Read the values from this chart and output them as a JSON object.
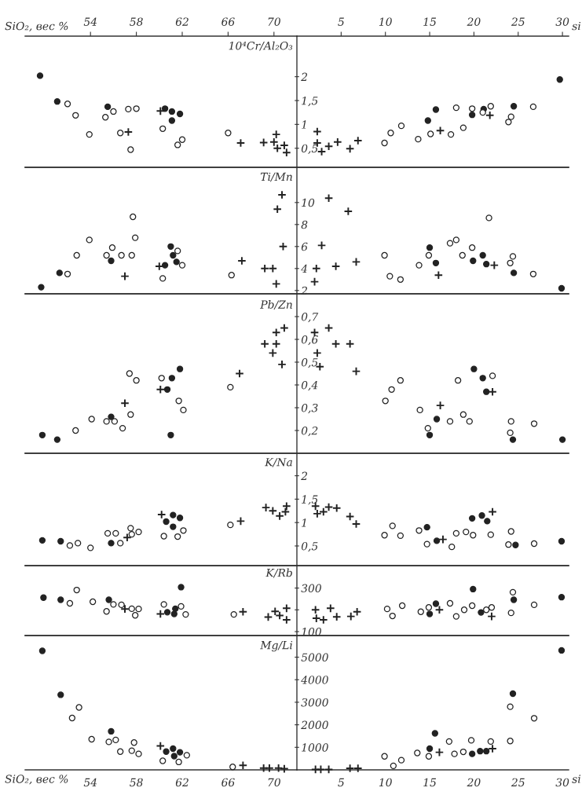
{
  "chart_data": [
    {
      "type": "scatter",
      "xlim": [
        48.3,
        72.0
      ],
      "xticks": [
        54,
        58,
        62,
        66,
        70
      ],
      "xlabel": "SiO₂, вес %",
      "ylim": [
        0.1,
        2.85
      ],
      "tick_labels": "x",
      "series": [
        {
          "color": "#222222",
          "marker": "circle",
          "x": [
            49.6,
            51.1,
            55.5,
            60.5,
            61.1,
            61.8,
            61.1
          ],
          "values": [
            2.02,
            1.48,
            1.37,
            1.33,
            1.27,
            1.22,
            1.08
          ]
        },
        {
          "color": "#ffffff",
          "marker": "circle",
          "x": [
            52.0,
            52.7,
            53.9,
            55.3,
            56.0,
            57.3,
            58.0,
            56.6,
            57.5,
            60.3,
            61.6,
            62.0,
            66.0
          ],
          "values": [
            1.43,
            1.19,
            0.79,
            1.15,
            1.27,
            1.32,
            1.33,
            0.82,
            0.47,
            0.91,
            0.57,
            0.68,
            0.82
          ]
        },
        {
          "color": "#222222",
          "marker": "cross",
          "x": [
            60.1,
            57.3,
            67.1,
            69.1,
            70.0,
            70.2,
            70.3,
            70.9,
            71.1
          ],
          "values": [
            1.28,
            0.84,
            0.61,
            0.62,
            0.63,
            0.79,
            0.5,
            0.56,
            0.41
          ]
        }
      ]
    },
    {
      "type": "scatter",
      "xlim": [
        0,
        30.7
      ],
      "xticks": [
        5,
        10,
        15,
        20,
        25,
        30
      ],
      "xlabel": "si",
      "ylim": [
        0.1,
        2.85
      ],
      "yticks": [
        {
          "value": 0.5,
          "label": "0,5"
        },
        1,
        {
          "value": 1.5,
          "label": "1,5"
        },
        2
      ],
      "ylabel": "10⁴Cr/Al₂O₃",
      "series": [
        {
          "color": "#222222",
          "marker": "circle",
          "x": [
            14.8,
            15.7,
            19.8,
            21.1,
            24.5,
            29.7
          ],
          "values": [
            1.08,
            1.31,
            1.2,
            1.32,
            1.38,
            1.94
          ]
        },
        {
          "color": "#ffffff",
          "marker": "circle",
          "x": [
            9.9,
            10.6,
            11.8,
            13.7,
            15.1,
            17.4,
            18.0,
            18.8,
            19.8,
            21.0,
            21.9,
            23.9,
            24.2,
            26.7
          ],
          "values": [
            0.61,
            0.82,
            0.97,
            0.69,
            0.8,
            0.79,
            1.35,
            0.93,
            1.33,
            1.25,
            1.38,
            1.05,
            1.16,
            1.37
          ]
        },
        {
          "color": "#222222",
          "marker": "cross",
          "x": [
            2.3,
            2.3,
            2.8,
            3.6,
            4.6,
            6.0,
            6.9,
            16.2,
            21.8
          ],
          "values": [
            0.85,
            0.61,
            0.43,
            0.54,
            0.63,
            0.49,
            0.66,
            0.87,
            1.19
          ]
        }
      ]
    },
    {
      "type": "scatter",
      "xlim": [
        48.3,
        72.0
      ],
      "ylim": [
        1.7,
        13.2
      ],
      "tick_labels": false,
      "series": [
        {
          "color": "#222222",
          "marker": "circle",
          "x": [
            51.3,
            55.8,
            61.0,
            61.2,
            60.5,
            61.5,
            49.7
          ],
          "values": [
            3.6,
            4.7,
            6.0,
            5.2,
            4.3,
            4.6,
            2.3
          ]
        },
        {
          "color": "#ffffff",
          "marker": "circle",
          "x": [
            52.0,
            52.8,
            53.9,
            55.4,
            55.9,
            56.7,
            57.6,
            57.7,
            57.9,
            61.6,
            62.0,
            60.3,
            66.3
          ],
          "values": [
            3.5,
            5.2,
            6.6,
            5.2,
            5.9,
            5.2,
            5.2,
            8.7,
            6.8,
            5.6,
            4.3,
            3.1,
            3.4
          ]
        },
        {
          "color": "#222222",
          "marker": "cross",
          "x": [
            57.0,
            60.0,
            67.2,
            69.2,
            69.9,
            70.7,
            70.3,
            70.8,
            70.2
          ],
          "values": [
            3.3,
            4.2,
            4.7,
            4.0,
            4.0,
            10.7,
            9.4,
            6.0,
            2.6
          ]
        }
      ]
    },
    {
      "type": "scatter",
      "xlim": [
        0,
        30.7
      ],
      "ylim": [
        1.7,
        13.2
      ],
      "yticks": [
        2,
        4,
        6,
        8,
        10
      ],
      "ylabel": "Ti/Mn",
      "tick_labels": "y",
      "series": [
        {
          "color": "#222222",
          "marker": "circle",
          "x": [
            15.0,
            15.7,
            19.9,
            21.0,
            21.4,
            24.5,
            29.9
          ],
          "values": [
            5.9,
            4.5,
            4.7,
            5.2,
            4.4,
            3.6,
            2.2
          ]
        },
        {
          "color": "#ffffff",
          "marker": "circle",
          "x": [
            9.9,
            10.5,
            11.7,
            13.8,
            14.9,
            17.3,
            18.0,
            18.7,
            19.8,
            21.7,
            24.1,
            24.4,
            26.7
          ],
          "values": [
            5.2,
            3.3,
            3.0,
            4.3,
            5.2,
            6.3,
            6.6,
            5.2,
            5.9,
            8.6,
            4.5,
            5.1,
            3.5
          ]
        },
        {
          "color": "#222222",
          "marker": "cross",
          "x": [
            3.6,
            5.8,
            2.8,
            2.2,
            4.4,
            6.7,
            16.0,
            22.3,
            2.0
          ],
          "values": [
            10.4,
            9.2,
            6.1,
            4.0,
            4.2,
            4.6,
            3.4,
            4.3,
            2.8
          ]
        }
      ]
    },
    {
      "type": "scatter",
      "xlim": [
        48.3,
        72.0
      ],
      "ylim": [
        0.1,
        0.8
      ],
      "tick_labels": false,
      "series": [
        {
          "color": "#222222",
          "marker": "circle",
          "x": [
            49.8,
            51.1,
            55.8,
            61.1,
            61.8,
            60.7,
            61.0
          ],
          "values": [
            0.18,
            0.16,
            0.26,
            0.43,
            0.47,
            0.38,
            0.18
          ]
        },
        {
          "color": "#ffffff",
          "marker": "circle",
          "x": [
            52.7,
            54.1,
            55.4,
            56.1,
            56.8,
            57.5,
            57.4,
            58.0,
            60.2,
            61.7,
            62.1,
            66.2
          ],
          "values": [
            0.2,
            0.25,
            0.24,
            0.24,
            0.21,
            0.27,
            0.45,
            0.42,
            0.43,
            0.33,
            0.29,
            0.39
          ]
        },
        {
          "color": "#222222",
          "marker": "cross",
          "x": [
            57.0,
            60.1,
            67.0,
            69.2,
            70.2,
            70.2,
            70.9,
            69.9,
            70.7
          ],
          "values": [
            0.32,
            0.38,
            0.45,
            0.58,
            0.58,
            0.63,
            0.65,
            0.54,
            0.49
          ]
        }
      ]
    },
    {
      "type": "scatter",
      "xlim": [
        0,
        30.7
      ],
      "ylim": [
        0.1,
        0.8
      ],
      "yticks": [
        {
          "value": 0.2,
          "label": "0,2"
        },
        {
          "value": 0.3,
          "label": "0,3"
        },
        {
          "value": 0.4,
          "label": "0,4"
        },
        {
          "value": 0.5,
          "label": "0,5"
        },
        {
          "value": 0.6,
          "label": "0,6"
        },
        {
          "value": 0.7,
          "label": "0,7"
        }
      ],
      "ylabel": "Pb/Zn",
      "tick_labels": "y",
      "series": [
        {
          "color": "#222222",
          "marker": "circle",
          "x": [
            15.0,
            15.8,
            20.0,
            21.0,
            21.4,
            24.4,
            30.0
          ],
          "values": [
            0.18,
            0.25,
            0.47,
            0.43,
            0.37,
            0.16,
            0.16
          ]
        },
        {
          "color": "#ffffff",
          "marker": "circle",
          "x": [
            10.0,
            10.7,
            11.7,
            13.9,
            14.8,
            17.3,
            18.2,
            18.8,
            19.5,
            22.1,
            24.2,
            24.1,
            26.8
          ],
          "values": [
            0.33,
            0.38,
            0.42,
            0.29,
            0.21,
            0.24,
            0.42,
            0.27,
            0.24,
            0.44,
            0.24,
            0.19,
            0.23
          ]
        },
        {
          "color": "#222222",
          "marker": "cross",
          "x": [
            2.0,
            3.6,
            2.3,
            2.6,
            4.4,
            6.0,
            6.7,
            16.2,
            22.1
          ],
          "values": [
            0.63,
            0.65,
            0.54,
            0.48,
            0.58,
            0.58,
            0.46,
            0.31,
            0.37
          ]
        }
      ]
    },
    {
      "type": "scatter",
      "xlim": [
        48.3,
        72.0
      ],
      "ylim": [
        0.08,
        2.48
      ],
      "tick_labels": false,
      "series": [
        {
          "color": "#222222",
          "marker": "circle",
          "x": [
            49.8,
            51.4,
            55.8,
            60.6,
            61.2,
            61.8,
            61.2
          ],
          "values": [
            0.62,
            0.6,
            0.56,
            1.02,
            1.16,
            1.1,
            0.91
          ]
        },
        {
          "color": "#ffffff",
          "marker": "circle",
          "x": [
            52.2,
            52.9,
            54.0,
            55.5,
            56.2,
            56.6,
            57.5,
            57.6,
            58.2,
            60.4,
            61.6,
            62.1,
            66.2
          ],
          "values": [
            0.51,
            0.56,
            0.46,
            0.77,
            0.77,
            0.56,
            0.88,
            0.75,
            0.8,
            0.71,
            0.7,
            0.83,
            0.95
          ]
        },
        {
          "color": "#222222",
          "marker": "cross",
          "x": [
            57.2,
            60.2,
            67.1,
            69.3,
            69.9,
            70.5,
            71.1,
            71.0
          ],
          "values": [
            0.68,
            1.17,
            1.03,
            1.32,
            1.25,
            1.14,
            1.35,
            1.23
          ]
        }
      ]
    },
    {
      "type": "scatter",
      "xlim": [
        0,
        30.7
      ],
      "ylim": [
        0.08,
        2.48
      ],
      "yticks": [
        {
          "value": 0.5,
          "label": "0,5"
        },
        1,
        {
          "value": 1.5,
          "label": "1,5"
        },
        2
      ],
      "ylabel": "K/Na",
      "tick_labels": "y",
      "series": [
        {
          "color": "#222222",
          "marker": "circle",
          "x": [
            14.7,
            15.8,
            19.8,
            20.9,
            21.5,
            24.7,
            29.9
          ],
          "values": [
            0.9,
            0.61,
            1.09,
            1.15,
            1.03,
            0.52,
            0.6
          ]
        },
        {
          "color": "#ffffff",
          "marker": "circle",
          "x": [
            9.9,
            10.8,
            11.7,
            13.8,
            14.7,
            17.5,
            18.0,
            19.1,
            19.9,
            21.9,
            24.2,
            23.9,
            26.8
          ],
          "values": [
            0.73,
            0.93,
            0.72,
            0.83,
            0.54,
            0.48,
            0.77,
            0.8,
            0.73,
            0.74,
            0.81,
            0.53,
            0.55
          ]
        },
        {
          "color": "#222222",
          "marker": "cross",
          "x": [
            2.1,
            2.3,
            3.0,
            3.6,
            4.5,
            6.0,
            6.7,
            16.5,
            22.1
          ],
          "values": [
            1.35,
            1.19,
            1.23,
            1.33,
            1.31,
            1.13,
            0.97,
            0.64,
            1.23
          ]
        }
      ]
    },
    {
      "type": "scatter",
      "xlim": [
        48.3,
        72.0
      ],
      "ylim": [
        82,
        403
      ],
      "tick_labels": false,
      "series": [
        {
          "color": "#222222",
          "marker": "circle",
          "x": [
            49.9,
            51.4,
            55.6,
            61.9,
            60.7,
            61.3,
            61.4
          ],
          "values": [
            256,
            246,
            246,
            304,
            189,
            181,
            205
          ]
        },
        {
          "color": "#ffffff",
          "marker": "circle",
          "x": [
            52.2,
            52.8,
            54.2,
            55.4,
            56.0,
            56.7,
            57.6,
            57.9,
            58.2,
            60.4,
            61.9,
            62.3,
            66.5
          ],
          "values": [
            230,
            291,
            237,
            193,
            225,
            223,
            205,
            175,
            204,
            225,
            216,
            179,
            179
          ]
        },
        {
          "color": "#222222",
          "marker": "cross",
          "x": [
            60.1,
            57.0,
            67.3,
            70.1,
            70.5,
            71.1,
            69.5,
            71.1
          ],
          "values": [
            181,
            204,
            191,
            193,
            174,
            207,
            167,
            154
          ]
        }
      ]
    },
    {
      "type": "scatter",
      "xlim": [
        0,
        30.7
      ],
      "ylim": [
        82,
        403
      ],
      "yticks": [
        100,
        {
          "value": 200,
          "label": null
        },
        300
      ],
      "ylabel": "K/Rb",
      "tick_labels": "y",
      "series": [
        {
          "color": "#222222",
          "marker": "circle",
          "x": [
            15.7,
            15.0,
            19.9,
            20.8,
            24.5,
            29.9
          ],
          "values": [
            228,
            181,
            295,
            188,
            246,
            258
          ]
        },
        {
          "color": "#ffffff",
          "marker": "circle",
          "x": [
            10.2,
            10.8,
            11.9,
            14.0,
            14.9,
            17.3,
            18.0,
            18.9,
            19.8,
            21.4,
            22.0,
            24.4,
            24.2,
            26.8
          ],
          "values": [
            204,
            172,
            219,
            191,
            211,
            230,
            170,
            200,
            219,
            200,
            211,
            281,
            186,
            223
          ]
        },
        {
          "color": "#222222",
          "marker": "cross",
          "x": [
            2.1,
            2.2,
            3.0,
            3.8,
            4.5,
            6.1,
            6.8,
            16.1,
            22.0
          ],
          "values": [
            200,
            161,
            154,
            207,
            168,
            170,
            191,
            200,
            170
          ]
        }
      ]
    },
    {
      "type": "scatter",
      "xlim": [
        48.3,
        72.0
      ],
      "xticks": [
        54,
        58,
        62,
        66,
        70
      ],
      "xlabel": "SiO₂, вес %",
      "ylim": [
        0,
        5960
      ],
      "tick_labels": "x",
      "series": [
        {
          "color": "#222222",
          "marker": "circle",
          "x": [
            49.8,
            51.4,
            55.8,
            60.6,
            61.2,
            61.3,
            61.8
          ],
          "values": [
            5280,
            3330,
            1710,
            810,
            940,
            610,
            780
          ]
        },
        {
          "color": "#ffffff",
          "marker": "circle",
          "x": [
            52.4,
            53.0,
            54.1,
            55.6,
            56.2,
            56.6,
            57.6,
            57.8,
            58.2,
            60.3,
            61.7,
            62.4,
            66.4
          ],
          "values": [
            2300,
            2770,
            1360,
            1240,
            1330,
            810,
            850,
            1210,
            710,
            400,
            350,
            650,
            130
          ]
        },
        {
          "color": "#222222",
          "marker": "cross",
          "x": [
            60.1,
            67.3,
            69.1,
            69.6,
            70.4,
            70.9
          ],
          "values": [
            1060,
            200,
            80,
            80,
            80,
            50
          ]
        }
      ]
    },
    {
      "type": "scatter",
      "xlim": [
        0,
        30.7
      ],
      "xticks": [
        5,
        10,
        15,
        20,
        25,
        30
      ],
      "xlabel": "si",
      "ylim": [
        0,
        5960
      ],
      "yticks": [
        1000,
        2000,
        3000,
        4000,
        5000
      ],
      "ylabel": "Mg/Li",
      "series": [
        {
          "color": "#222222",
          "marker": "circle",
          "x": [
            15.0,
            15.6,
            19.8,
            20.7,
            21.4,
            24.4,
            29.9
          ],
          "values": [
            940,
            1620,
            710,
            830,
            830,
            3380,
            5300
          ]
        },
        {
          "color": "#ffffff",
          "marker": "circle",
          "x": [
            9.9,
            10.9,
            11.8,
            13.6,
            14.9,
            17.2,
            17.8,
            18.8,
            19.7,
            21.9,
            24.1,
            24.1,
            26.8
          ],
          "values": [
            600,
            180,
            430,
            750,
            600,
            1260,
            710,
            800,
            1310,
            1260,
            2800,
            1280,
            2290
          ]
        },
        {
          "color": "#222222",
          "marker": "cross",
          "x": [
            2.1,
            2.7,
            3.6,
            6.0,
            6.9,
            16.1,
            22.1
          ],
          "values": [
            20,
            20,
            20,
            70,
            70,
            780,
            940
          ]
        }
      ]
    }
  ]
}
